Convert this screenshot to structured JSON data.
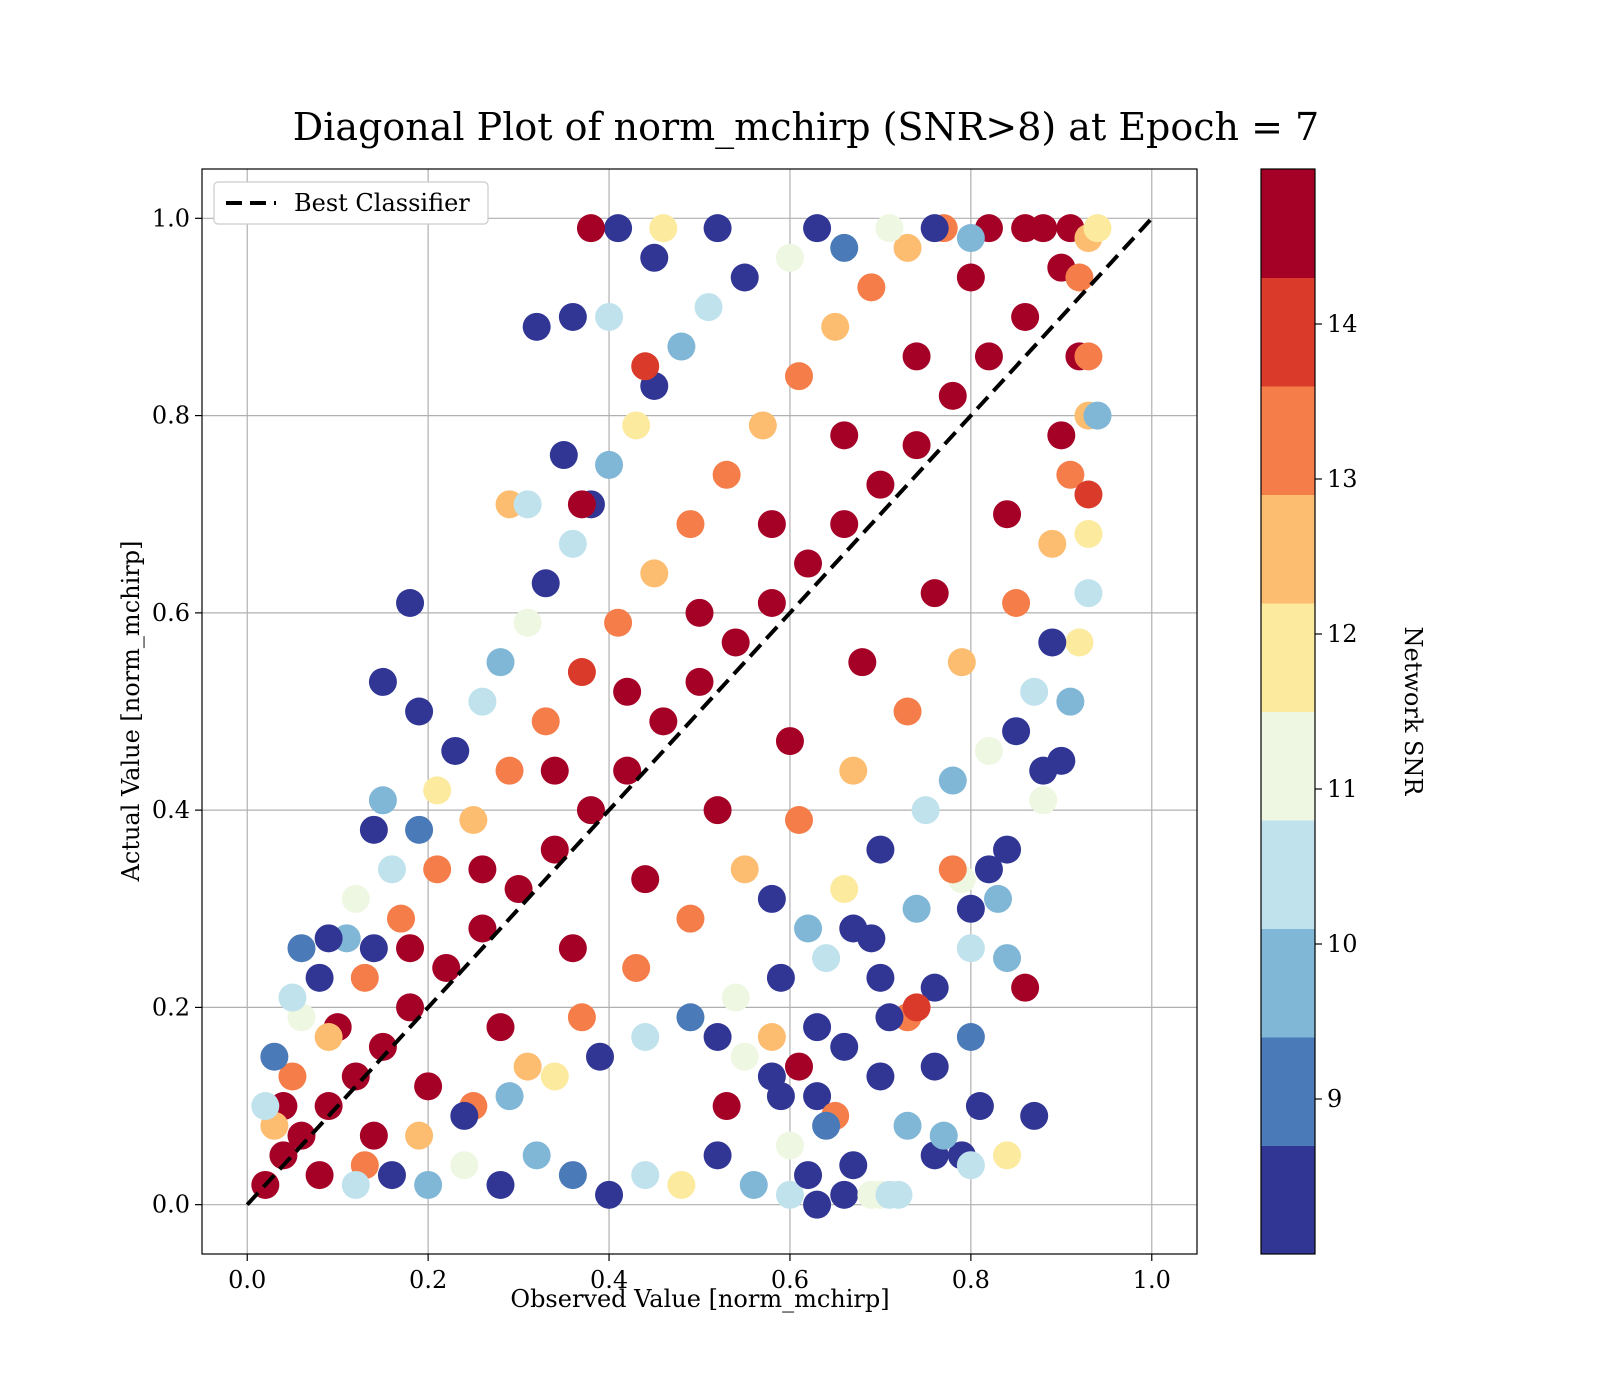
{
  "chart_data": {
    "type": "scatter",
    "title": "Diagonal Plot of norm_mchirp (SNR>8) at Epoch = 7",
    "xlabel": "Observed Value [norm_mchirp]",
    "ylabel": "Actual Value [norm_mchirp]",
    "xlim": [
      -0.05,
      1.05
    ],
    "ylim": [
      -0.05,
      1.05
    ],
    "x_ticks": [
      "0.0",
      "0.2",
      "0.4",
      "0.6",
      "0.8",
      "1.0"
    ],
    "y_ticks": [
      "0.0",
      "0.2",
      "0.4",
      "0.6",
      "0.8",
      "1.0"
    ],
    "grid": true,
    "legend": {
      "placement": "top-left",
      "entries": [
        "Best Classifier"
      ]
    },
    "reference_line": {
      "name": "Best Classifier",
      "style": "dashed",
      "color": "#000000",
      "x": [
        0,
        1
      ],
      "y": [
        0,
        1
      ]
    },
    "colorbar": {
      "label": "Network SNR",
      "range": [
        8,
        15
      ],
      "ticks": [
        "9",
        "10",
        "11",
        "12",
        "13",
        "14"
      ],
      "bins": [
        {
          "from": 8.0,
          "to": 8.7,
          "color": "#313695"
        },
        {
          "from": 8.7,
          "to": 9.4,
          "color": "#4a7ab7"
        },
        {
          "from": 9.4,
          "to": 10.1,
          "color": "#80b6d6"
        },
        {
          "from": 10.1,
          "to": 10.8,
          "color": "#bfe2ed"
        },
        {
          "from": 10.8,
          "to": 11.5,
          "color": "#eef7e1"
        },
        {
          "from": 11.5,
          "to": 12.2,
          "color": "#fcea9f"
        },
        {
          "from": 12.2,
          "to": 12.9,
          "color": "#fdbd71"
        },
        {
          "from": 12.9,
          "to": 13.6,
          "color": "#f57d4a"
        },
        {
          "from": 13.6,
          "to": 14.3,
          "color": "#d93a2a"
        },
        {
          "from": 14.3,
          "to": 15.0,
          "color": "#a50026"
        }
      ]
    },
    "points": [
      [
        0.02,
        0.02,
        14.8
      ],
      [
        0.04,
        0.05,
        14.8
      ],
      [
        0.06,
        0.07,
        14.8
      ],
      [
        0.09,
        0.1,
        14.8
      ],
      [
        0.12,
        0.13,
        14.8
      ],
      [
        0.15,
        0.16,
        14.8
      ],
      [
        0.18,
        0.2,
        14.8
      ],
      [
        0.22,
        0.24,
        14.8
      ],
      [
        0.26,
        0.28,
        14.8
      ],
      [
        0.3,
        0.32,
        14.8
      ],
      [
        0.34,
        0.36,
        14.8
      ],
      [
        0.38,
        0.4,
        14.8
      ],
      [
        0.42,
        0.44,
        14.8
      ],
      [
        0.46,
        0.49,
        14.8
      ],
      [
        0.5,
        0.53,
        14.8
      ],
      [
        0.54,
        0.57,
        14.8
      ],
      [
        0.58,
        0.61,
        14.8
      ],
      [
        0.62,
        0.65,
        14.8
      ],
      [
        0.66,
        0.69,
        14.8
      ],
      [
        0.7,
        0.73,
        14.8
      ],
      [
        0.74,
        0.77,
        14.8
      ],
      [
        0.78,
        0.82,
        14.8
      ],
      [
        0.82,
        0.86,
        14.8
      ],
      [
        0.86,
        0.9,
        14.8
      ],
      [
        0.9,
        0.95,
        14.8
      ],
      [
        0.08,
        0.03,
        14.8
      ],
      [
        0.14,
        0.07,
        14.8
      ],
      [
        0.2,
        0.12,
        14.8
      ],
      [
        0.28,
        0.18,
        14.8
      ],
      [
        0.36,
        0.26,
        14.8
      ],
      [
        0.44,
        0.33,
        14.8
      ],
      [
        0.52,
        0.4,
        14.8
      ],
      [
        0.6,
        0.47,
        14.8
      ],
      [
        0.68,
        0.55,
        14.8
      ],
      [
        0.76,
        0.62,
        14.8
      ],
      [
        0.84,
        0.7,
        14.8
      ],
      [
        0.9,
        0.78,
        14.8
      ],
      [
        0.92,
        0.86,
        14.8
      ],
      [
        0.04,
        0.1,
        14.8
      ],
      [
        0.1,
        0.18,
        14.8
      ],
      [
        0.18,
        0.26,
        14.8
      ],
      [
        0.26,
        0.34,
        14.8
      ],
      [
        0.34,
        0.44,
        14.8
      ],
      [
        0.42,
        0.52,
        14.8
      ],
      [
        0.5,
        0.6,
        14.8
      ],
      [
        0.58,
        0.69,
        14.8
      ],
      [
        0.66,
        0.78,
        14.8
      ],
      [
        0.74,
        0.86,
        14.8
      ],
      [
        0.8,
        0.94,
        14.8
      ],
      [
        0.86,
        0.99,
        14.8
      ],
      [
        0.82,
        0.99,
        14.8
      ],
      [
        0.88,
        0.99,
        14.8
      ],
      [
        0.91,
        0.99,
        14.8
      ],
      [
        0.93,
        0.98,
        12.6
      ],
      [
        0.94,
        0.99,
        11.8
      ],
      [
        0.03,
        0.08,
        12.7
      ],
      [
        0.05,
        0.13,
        13.2
      ],
      [
        0.09,
        0.17,
        12.8
      ],
      [
        0.13,
        0.23,
        13.5
      ],
      [
        0.17,
        0.29,
        13.1
      ],
      [
        0.21,
        0.34,
        13.4
      ],
      [
        0.25,
        0.39,
        12.5
      ],
      [
        0.29,
        0.44,
        13.3
      ],
      [
        0.33,
        0.49,
        12.9
      ],
      [
        0.37,
        0.54,
        13.6
      ],
      [
        0.41,
        0.59,
        13.4
      ],
      [
        0.45,
        0.64,
        12.6
      ],
      [
        0.49,
        0.69,
        13.2
      ],
      [
        0.53,
        0.74,
        13.5
      ],
      [
        0.57,
        0.79,
        12.7
      ],
      [
        0.61,
        0.84,
        13.3
      ],
      [
        0.65,
        0.89,
        12.4
      ],
      [
        0.69,
        0.93,
        13.1
      ],
      [
        0.73,
        0.97,
        12.6
      ],
      [
        0.77,
        0.99,
        13.0
      ],
      [
        0.13,
        0.04,
        13.4
      ],
      [
        0.19,
        0.07,
        12.8
      ],
      [
        0.25,
        0.1,
        13.3
      ],
      [
        0.31,
        0.14,
        12.7
      ],
      [
        0.37,
        0.19,
        13.5
      ],
      [
        0.43,
        0.24,
        12.9
      ],
      [
        0.49,
        0.29,
        13.2
      ],
      [
        0.55,
        0.34,
        12.6
      ],
      [
        0.61,
        0.39,
        13.4
      ],
      [
        0.67,
        0.44,
        12.8
      ],
      [
        0.73,
        0.5,
        13.3
      ],
      [
        0.79,
        0.55,
        12.5
      ],
      [
        0.85,
        0.61,
        13.1
      ],
      [
        0.89,
        0.67,
        12.7
      ],
      [
        0.91,
        0.74,
        13.4
      ],
      [
        0.93,
        0.8,
        12.6
      ],
      [
        0.93,
        0.86,
        13.2
      ],
      [
        0.92,
        0.94,
        12.9
      ],
      [
        0.02,
        0.1,
        10.4
      ],
      [
        0.03,
        0.15,
        9.2
      ],
      [
        0.06,
        0.19,
        10.9
      ],
      [
        0.08,
        0.23,
        8.4
      ],
      [
        0.11,
        0.27,
        9.8
      ],
      [
        0.12,
        0.31,
        11.3
      ],
      [
        0.14,
        0.26,
        8.5
      ],
      [
        0.16,
        0.34,
        10.2
      ],
      [
        0.19,
        0.38,
        9.1
      ],
      [
        0.21,
        0.42,
        11.6
      ],
      [
        0.23,
        0.46,
        8.6
      ],
      [
        0.26,
        0.51,
        10.6
      ],
      [
        0.28,
        0.55,
        9.5
      ],
      [
        0.31,
        0.59,
        11.2
      ],
      [
        0.33,
        0.63,
        8.4
      ],
      [
        0.36,
        0.67,
        10.1
      ],
      [
        0.38,
        0.71,
        8.3
      ],
      [
        0.4,
        0.75,
        9.9
      ],
      [
        0.43,
        0.79,
        11.7
      ],
      [
        0.45,
        0.83,
        8.6
      ],
      [
        0.48,
        0.87,
        9.4
      ],
      [
        0.51,
        0.91,
        10.3
      ],
      [
        0.55,
        0.94,
        8.5
      ],
      [
        0.6,
        0.96,
        11.4
      ],
      [
        0.66,
        0.97,
        9.3
      ],
      [
        0.71,
        0.99,
        10.8
      ],
      [
        0.76,
        0.99,
        8.4
      ],
      [
        0.8,
        0.98,
        9.6
      ],
      [
        0.63,
        0.99,
        8.2
      ],
      [
        0.52,
        0.99,
        8.3
      ],
      [
        0.46,
        0.99,
        11.9
      ],
      [
        0.41,
        0.99,
        8.4
      ],
      [
        0.32,
        0.89,
        8.4
      ],
      [
        0.36,
        0.9,
        8.3
      ],
      [
        0.45,
        0.96,
        8.2
      ],
      [
        0.38,
        0.99,
        14.8
      ],
      [
        0.18,
        0.61,
        8.3
      ],
      [
        0.15,
        0.53,
        8.4
      ],
      [
        0.19,
        0.5,
        8.2
      ],
      [
        0.15,
        0.41,
        9.5
      ],
      [
        0.14,
        0.38,
        8.4
      ],
      [
        0.09,
        0.27,
        8.5
      ],
      [
        0.06,
        0.26,
        9.1
      ],
      [
        0.05,
        0.21,
        10.2
      ],
      [
        0.35,
        0.76,
        8.3
      ],
      [
        0.37,
        0.71,
        14.7
      ],
      [
        0.29,
        0.71,
        12.4
      ],
      [
        0.31,
        0.71,
        10.4
      ],
      [
        0.4,
        0.9,
        10.6
      ],
      [
        0.44,
        0.85,
        13.6
      ],
      [
        0.12,
        0.02,
        10.3
      ],
      [
        0.16,
        0.03,
        8.6
      ],
      [
        0.2,
        0.02,
        9.5
      ],
      [
        0.24,
        0.04,
        11.1
      ],
      [
        0.28,
        0.02,
        8.4
      ],
      [
        0.32,
        0.05,
        10.0
      ],
      [
        0.36,
        0.03,
        9.2
      ],
      [
        0.4,
        0.01,
        8.3
      ],
      [
        0.44,
        0.03,
        10.7
      ],
      [
        0.48,
        0.02,
        11.8
      ],
      [
        0.52,
        0.05,
        8.5
      ],
      [
        0.56,
        0.02,
        9.7
      ],
      [
        0.6,
        0.01,
        10.5
      ],
      [
        0.66,
        0.01,
        8.4
      ],
      [
        0.7,
        0.01,
        11.0
      ],
      [
        0.24,
        0.09,
        8.4
      ],
      [
        0.29,
        0.11,
        9.9
      ],
      [
        0.34,
        0.13,
        11.5
      ],
      [
        0.39,
        0.15,
        8.6
      ],
      [
        0.44,
        0.17,
        10.2
      ],
      [
        0.49,
        0.19,
        9.3
      ],
      [
        0.54,
        0.21,
        11.2
      ],
      [
        0.59,
        0.23,
        8.3
      ],
      [
        0.64,
        0.25,
        10.1
      ],
      [
        0.69,
        0.27,
        8.5
      ],
      [
        0.74,
        0.3,
        9.6
      ],
      [
        0.79,
        0.33,
        11.3
      ],
      [
        0.84,
        0.36,
        8.4
      ],
      [
        0.88,
        0.41,
        10.8
      ],
      [
        0.9,
        0.45,
        8.3
      ],
      [
        0.91,
        0.51,
        9.4
      ],
      [
        0.92,
        0.57,
        11.6
      ],
      [
        0.93,
        0.62,
        10.3
      ],
      [
        0.93,
        0.68,
        12.0
      ],
      [
        0.93,
        0.72,
        13.6
      ],
      [
        0.94,
        0.8,
        9.8
      ],
      [
        0.88,
        0.44,
        8.3
      ],
      [
        0.84,
        0.25,
        9.7
      ],
      [
        0.86,
        0.22,
        14.7
      ],
      [
        0.82,
        0.34,
        8.2
      ],
      [
        0.8,
        0.3,
        8.4
      ],
      [
        0.78,
        0.34,
        13.2
      ],
      [
        0.8,
        0.26,
        10.6
      ],
      [
        0.76,
        0.22,
        8.5
      ],
      [
        0.73,
        0.19,
        13.4
      ],
      [
        0.7,
        0.23,
        8.3
      ],
      [
        0.67,
        0.28,
        8.4
      ],
      [
        0.63,
        0.18,
        8.6
      ],
      [
        0.61,
        0.14,
        14.6
      ],
      [
        0.58,
        0.13,
        8.4
      ],
      [
        0.52,
        0.17,
        8.3
      ],
      [
        0.55,
        0.15,
        11.4
      ],
      [
        0.66,
        0.16,
        8.5
      ],
      [
        0.71,
        0.19,
        8.4
      ],
      [
        0.7,
        0.13,
        8.2
      ],
      [
        0.73,
        0.08,
        9.4
      ],
      [
        0.76,
        0.14,
        8.3
      ],
      [
        0.79,
        0.05,
        8.4
      ],
      [
        0.8,
        0.04,
        10.3
      ],
      [
        0.81,
        0.1,
        8.3
      ],
      [
        0.84,
        0.05,
        12.1
      ],
      [
        0.87,
        0.09,
        8.4
      ],
      [
        0.76,
        0.05,
        8.2
      ],
      [
        0.69,
        0.01,
        11.3
      ],
      [
        0.71,
        0.01,
        10.2
      ],
      [
        0.53,
        0.1,
        14.5
      ],
      [
        0.59,
        0.11,
        8.3
      ],
      [
        0.63,
        0.11,
        8.6
      ],
      [
        0.6,
        0.06,
        11.2
      ],
      [
        0.65,
        0.09,
        13.4
      ],
      [
        0.58,
        0.17,
        12.5
      ],
      [
        0.64,
        0.08,
        9.3
      ],
      [
        0.62,
        0.03,
        8.4
      ],
      [
        0.67,
        0.04,
        8.3
      ],
      [
        0.63,
        0.0,
        8.3
      ],
      [
        0.72,
        0.01,
        10.3
      ],
      [
        0.74,
        0.2,
        14.0
      ],
      [
        0.77,
        0.07,
        9.5
      ],
      [
        0.8,
        0.17,
        9.2
      ],
      [
        0.83,
        0.31,
        9.9
      ],
      [
        0.58,
        0.31,
        8.4
      ],
      [
        0.62,
        0.28,
        9.6
      ],
      [
        0.66,
        0.32,
        11.5
      ],
      [
        0.7,
        0.36,
        8.5
      ],
      [
        0.75,
        0.4,
        10.1
      ],
      [
        0.78,
        0.43,
        9.4
      ],
      [
        0.82,
        0.46,
        11.2
      ],
      [
        0.85,
        0.48,
        8.3
      ],
      [
        0.87,
        0.52,
        10.4
      ],
      [
        0.89,
        0.57,
        8.6
      ]
    ]
  }
}
